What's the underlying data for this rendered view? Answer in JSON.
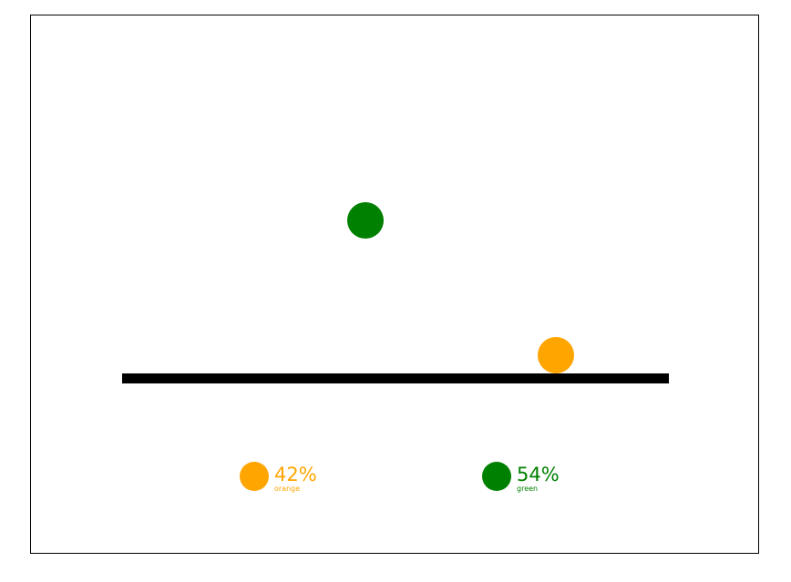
{
  "colors": {
    "orange": "#FFA500",
    "green": "#008000",
    "bar": "#000000",
    "frame_border": "#000000",
    "background": "#FFFFFF"
  },
  "balls": [
    {
      "name": "green",
      "color": "#008000"
    },
    {
      "name": "orange",
      "color": "#FFA500"
    }
  ],
  "legend": [
    {
      "name": "orange",
      "value": "42%",
      "color": "#FFA500"
    },
    {
      "name": "green",
      "value": "54%",
      "color": "#008000"
    }
  ]
}
